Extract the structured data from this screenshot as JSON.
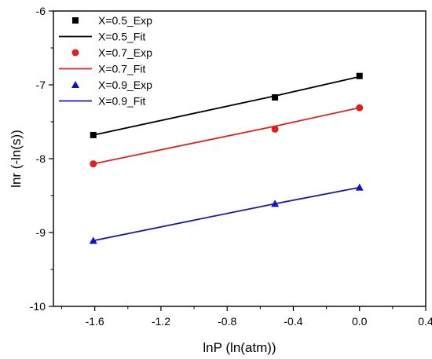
{
  "chart_data": {
    "type": "line",
    "xlabel": "lnP (ln(atm))",
    "ylabel": "lnr (-ln(s))",
    "xlim": [
      -1.85,
      0.4
    ],
    "ylim": [
      -10,
      -6
    ],
    "x_ticks": [
      -1.6,
      -1.2,
      -0.8,
      -0.4,
      0.0,
      0.4
    ],
    "x_tick_labels": [
      "-1.6",
      "-1.2",
      "-0.8",
      "-0.4",
      "0.0",
      "0.4"
    ],
    "y_ticks": [
      -10,
      -9,
      -8,
      -7,
      -6
    ],
    "y_tick_labels": [
      "-10",
      "-9",
      "-8",
      "-7",
      "-6"
    ],
    "grid": false,
    "legend_position": "top-left",
    "x": [
      -1.609,
      -0.511,
      0.0
    ],
    "series": [
      {
        "name": "X=0.5_Exp",
        "kind": "scatter",
        "marker": "square",
        "color": "#000000",
        "values": [
          -7.68,
          -7.17,
          -6.88
        ]
      },
      {
        "name": "X=0.5_Fit",
        "kind": "line",
        "color": "#000000",
        "values": [
          -7.68,
          -7.15,
          -6.89
        ]
      },
      {
        "name": "X=0.7_Exp",
        "kind": "scatter",
        "marker": "circle",
        "color": "#e0201b",
        "values": [
          -8.07,
          -7.6,
          -7.31
        ]
      },
      {
        "name": "X=0.7_Fit",
        "kind": "line",
        "color": "#e0201b",
        "values": [
          -8.07,
          -7.56,
          -7.31
        ]
      },
      {
        "name": "X=0.9_Exp",
        "kind": "scatter",
        "marker": "triangle",
        "color": "#1010cc",
        "values": [
          -9.11,
          -8.61,
          -8.39
        ]
      },
      {
        "name": "X=0.9_Fit",
        "kind": "line",
        "color": "#1a1aa6",
        "values": [
          -9.11,
          -8.61,
          -8.39
        ]
      }
    ]
  }
}
